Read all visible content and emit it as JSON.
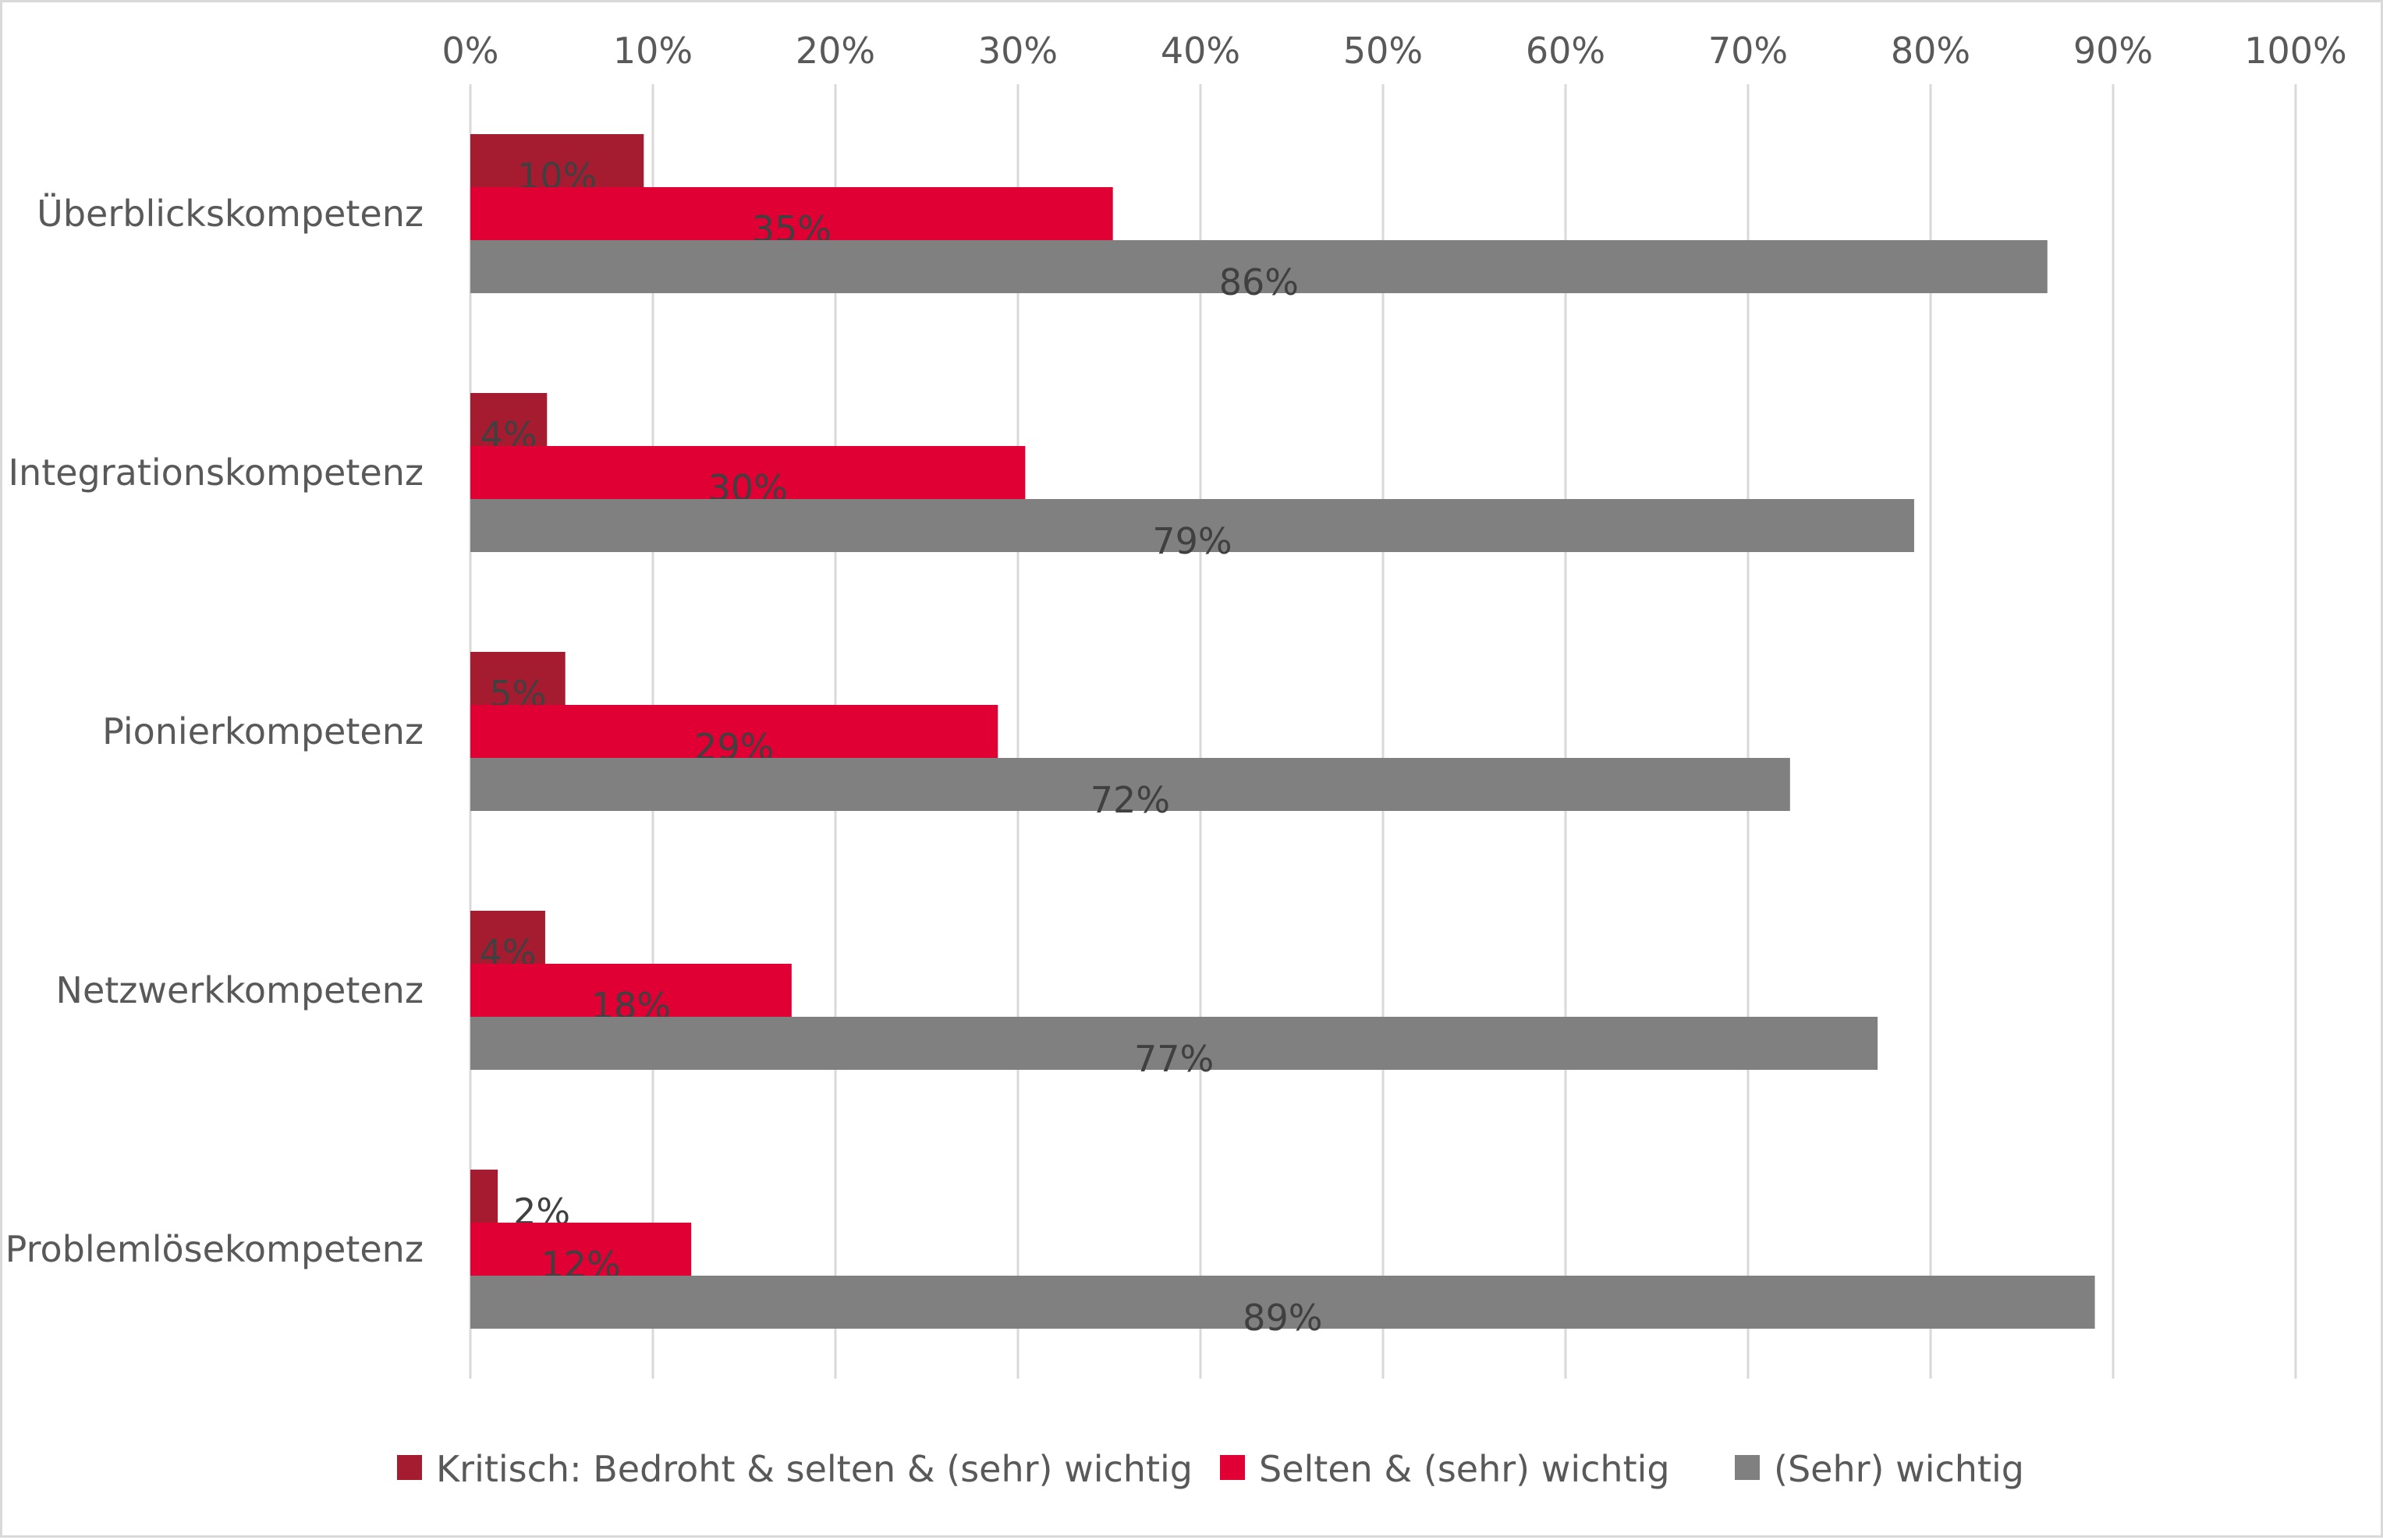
{
  "chart_data": {
    "type": "bar",
    "orientation": "horizontal",
    "title": "",
    "xlabel": "",
    "ylabel": "",
    "xlim": [
      0,
      1
    ],
    "x_ticks": [
      0,
      0.1,
      0.2,
      0.3,
      0.4,
      0.5,
      0.6,
      0.7,
      0.8,
      0.9,
      1.0
    ],
    "x_tick_labels": [
      "0%",
      "10%",
      "20%",
      "30%",
      "40%",
      "50%",
      "60%",
      "70%",
      "80%",
      "90%",
      "100%"
    ],
    "x_axis_position": "top",
    "grid": "vertical",
    "legend_position": "bottom",
    "categories": [
      "Überblickskompetenz",
      "Integrationskompetenz",
      "Pionierkompetenz",
      "Netzwerkkompetenz",
      "Problemlösekompetenz"
    ],
    "series": [
      {
        "name": "Kritisch: Bedroht & selten & (sehr) wichtig",
        "color": "#a51c30",
        "values": [
          0.095,
          0.042,
          0.052,
          0.041,
          0.015
        ],
        "labels": [
          "10%",
          "4%",
          "5%",
          "4%",
          "2%"
        ]
      },
      {
        "name": "Selten & (sehr) wichtig",
        "color": "#e00034",
        "values": [
          0.352,
          0.304,
          0.289,
          0.176,
          0.121
        ],
        "labels": [
          "35%",
          "30%",
          "29%",
          "18%",
          "12%"
        ]
      },
      {
        "name": "(Sehr) wichtig",
        "color": "#808080",
        "values": [
          0.864,
          0.791,
          0.723,
          0.771,
          0.89
        ],
        "labels": [
          "86%",
          "79%",
          "72%",
          "77%",
          "89%"
        ]
      }
    ]
  }
}
